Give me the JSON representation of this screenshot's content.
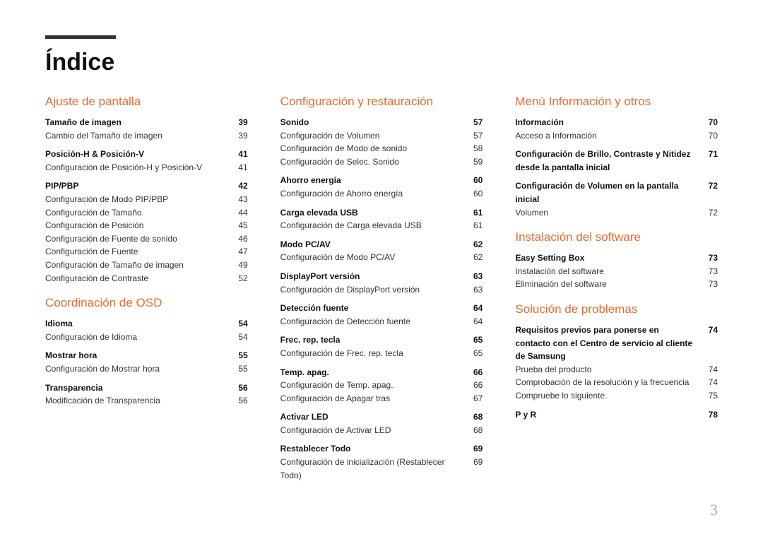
{
  "title": "Índice",
  "page_number": "3",
  "colors": {
    "accent": "#e86a2a",
    "text": "#333333",
    "rule": "#333333",
    "pagenum": "#aaaaaa",
    "background": "#ffffff"
  },
  "columns": [
    {
      "sections": [
        {
          "title": "Ajuste de pantalla",
          "groups": [
            [
              {
                "label": "Tamaño de imagen",
                "page": "39",
                "bold": true
              },
              {
                "label": "Cambio del Tamaño de imagen",
                "page": "39"
              }
            ],
            [
              {
                "label": "Posición-H & Posición-V",
                "page": "41",
                "bold": true
              },
              {
                "label": "Configuración de Posición-H y Posición-V",
                "page": "41"
              }
            ],
            [
              {
                "label": "PIP/PBP",
                "page": "42",
                "bold": true
              },
              {
                "label": "Configuración de Modo PIP/PBP",
                "page": "43"
              },
              {
                "label": "Configuración de Tamaño",
                "page": "44"
              },
              {
                "label": "Configuración de Posición",
                "page": "45"
              },
              {
                "label": "Configuración de Fuente de sonido",
                "page": "46"
              },
              {
                "label": "Configuración de Fuente",
                "page": "47"
              },
              {
                "label": "Configuración de Tamaño de imagen",
                "page": "49"
              },
              {
                "label": "Configuración de Contraste",
                "page": "52"
              }
            ]
          ]
        },
        {
          "title": "Coordinación de OSD",
          "groups": [
            [
              {
                "label": "Idioma",
                "page": "54",
                "bold": true
              },
              {
                "label": "Configuración de Idioma",
                "page": "54"
              }
            ],
            [
              {
                "label": "Mostrar hora",
                "page": "55",
                "bold": true
              },
              {
                "label": "Configuración de Mostrar hora",
                "page": "55"
              }
            ],
            [
              {
                "label": "Transparencia",
                "page": "56",
                "bold": true
              },
              {
                "label": "Modificación de Transparencia",
                "page": "56"
              }
            ]
          ]
        }
      ]
    },
    {
      "sections": [
        {
          "title": "Configuración y restauración",
          "groups": [
            [
              {
                "label": "Sonido",
                "page": "57",
                "bold": true
              },
              {
                "label": "Configuración de Volumen",
                "page": "57"
              },
              {
                "label": "Configuración de Modo de sonido",
                "page": "58"
              },
              {
                "label": "Configuración de Selec. Sonido",
                "page": "59"
              }
            ],
            [
              {
                "label": "Ahorro energía",
                "page": "60",
                "bold": true
              },
              {
                "label": "Configuración de Ahorro energía",
                "page": "60"
              }
            ],
            [
              {
                "label": "Carga elevada USB",
                "page": "61",
                "bold": true
              },
              {
                "label": "Configuración de Carga elevada USB",
                "page": "61"
              }
            ],
            [
              {
                "label": "Modo PC/AV",
                "page": "62",
                "bold": true
              },
              {
                "label": "Configuración de Modo PC/AV",
                "page": "62"
              }
            ],
            [
              {
                "label": "DisplayPort versión",
                "page": "63",
                "bold": true
              },
              {
                "label": "Configuración de DisplayPort versión",
                "page": "63"
              }
            ],
            [
              {
                "label": "Detección fuente",
                "page": "64",
                "bold": true
              },
              {
                "label": "Configuración de Detección fuente",
                "page": "64"
              }
            ],
            [
              {
                "label": "Frec. rep. tecla",
                "page": "65",
                "bold": true
              },
              {
                "label": "Configuración de Frec. rep. tecla",
                "page": "65"
              }
            ],
            [
              {
                "label": "Temp. apag.",
                "page": "66",
                "bold": true
              },
              {
                "label": "Configuración de Temp. apag.",
                "page": "66"
              },
              {
                "label": "Configuración de Apagar tras",
                "page": "67"
              }
            ],
            [
              {
                "label": "Activar LED",
                "page": "68",
                "bold": true
              },
              {
                "label": "Configuración de Activar LED",
                "page": "68"
              }
            ],
            [
              {
                "label": "Restablecer Todo",
                "page": "69",
                "bold": true
              },
              {
                "label": "Configuración de inicialización (Restablecer Todo)",
                "page": "69"
              }
            ]
          ]
        }
      ]
    },
    {
      "sections": [
        {
          "title": "Menú Información y otros",
          "groups": [
            [
              {
                "label": "Información",
                "page": "70",
                "bold": true
              },
              {
                "label": "Acceso a Información",
                "page": "70"
              }
            ],
            [
              {
                "label": "Configuración de Brillo, Contraste y Nitidez desde la pantalla inicial",
                "page": "71",
                "bold": true
              }
            ],
            [
              {
                "label": "Configuración de Volumen en la pantalla inicial",
                "page": "72",
                "bold": true
              },
              {
                "label": "Volumen",
                "page": "72"
              }
            ]
          ]
        },
        {
          "title": "Instalación del software",
          "groups": [
            [
              {
                "label": "Easy Setting Box",
                "page": "73",
                "bold": true
              },
              {
                "label": "Instalación del software",
                "page": "73"
              },
              {
                "label": "Eliminación del software",
                "page": "73"
              }
            ]
          ]
        },
        {
          "title": "Solución de problemas",
          "groups": [
            [
              {
                "label": "Requisitos previos para ponerse en contacto con el Centro de servicio al cliente de Samsung",
                "page": "74",
                "bold": true
              },
              {
                "label": "Prueba del producto",
                "page": "74"
              },
              {
                "label": "Comprobación de la resolución y la frecuencia",
                "page": "74"
              },
              {
                "label": "Compruebe lo siguiente.",
                "page": "75"
              }
            ],
            [
              {
                "label": "P y R",
                "page": "78",
                "bold": true
              }
            ]
          ]
        }
      ]
    }
  ]
}
